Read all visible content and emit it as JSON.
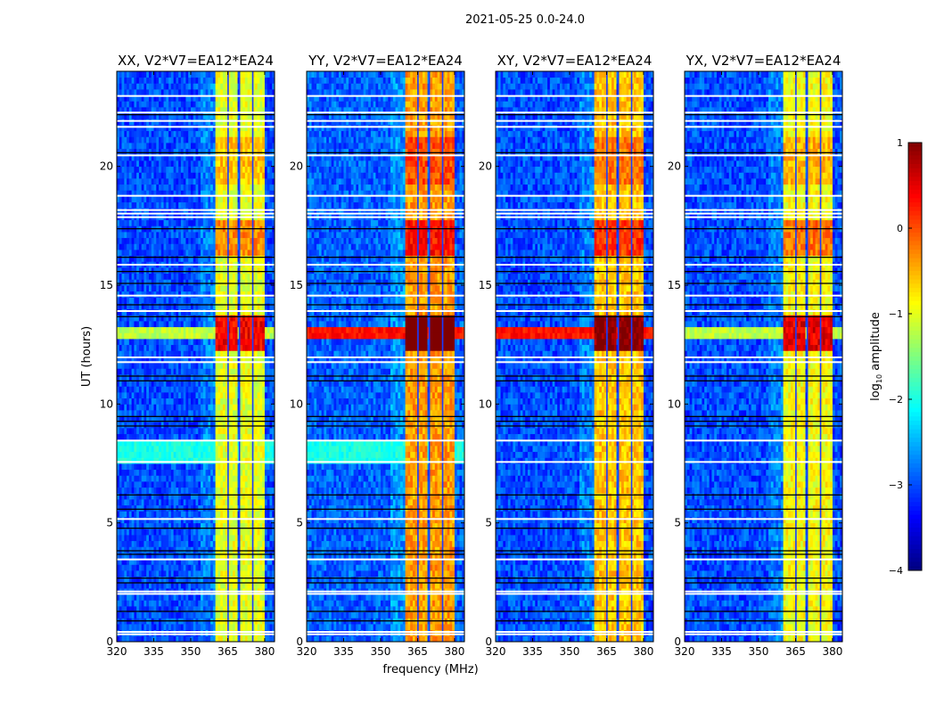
{
  "chart_data": {
    "type": "heatmap",
    "suptitle": "2021-05-25 0.0-24.0",
    "xlabel": "frequency (MHz)",
    "ylabel": "UT (hours)",
    "xlim": [
      320,
      384
    ],
    "ylim": [
      0,
      24
    ],
    "xticks": [
      320,
      335,
      350,
      365,
      380
    ],
    "yticks": [
      0,
      5,
      10,
      15,
      20
    ],
    "colorbar": {
      "label_main": "log",
      "label_sub": "10",
      "label_rest": " amplitude",
      "clim": [
        -4,
        1
      ],
      "ticks": [
        1,
        0,
        -1,
        -2,
        -3,
        -4
      ],
      "colormap": "jet"
    },
    "panels": [
      {
        "title": "XX, V2*V7=EA12*EA24",
        "background": -3.0,
        "band_level": -1.0,
        "hot_offset": 0.0
      },
      {
        "title": "YY, V2*V7=EA12*EA24",
        "background": -2.9,
        "band_level": -0.4,
        "hot_offset": 0.3
      },
      {
        "title": "XY, V2*V7=EA12*EA24",
        "background": -3.0,
        "band_level": -0.6,
        "hot_offset": 0.2
      },
      {
        "title": "YX, V2*V7=EA12*EA24",
        "background": -3.0,
        "band_level": -0.9,
        "hot_offset": 0.0
      }
    ],
    "rfi_columns_mhz": [
      [
        360.5,
        364.6
      ],
      [
        365.3,
        369.2
      ],
      [
        369.9,
        374.7
      ],
      [
        375.3,
        379.8
      ]
    ],
    "hot_time_ranges_hours": [
      {
        "range": [
          12.2,
          13.8
        ],
        "delta": 1.4
      },
      {
        "range": [
          16.3,
          17.8
        ],
        "delta": 0.7
      },
      {
        "range": [
          19.3,
          21.2
        ],
        "delta": 0.4
      }
    ],
    "broadband_time_ranges_hours": [
      {
        "range": [
          12.8,
          13.3
        ],
        "level": -1.2,
        "panels": [
          0,
          3
        ]
      },
      {
        "range": [
          12.8,
          13.3
        ],
        "level": 0.3,
        "panels": [
          1,
          2
        ]
      },
      {
        "range": [
          7.5,
          8.4
        ],
        "level": -2.0,
        "panels": [
          0,
          1
        ]
      }
    ],
    "flagged_times_hours": [
      0.35,
      0.45,
      2.05,
      2.15,
      3.5,
      5.2,
      7.6,
      8.5,
      11.8,
      12.0,
      13.95,
      14.6,
      15.9,
      17.9,
      18.05,
      18.2,
      18.8,
      20.5,
      21.7,
      21.95,
      22.3,
      23.0
    ],
    "dead_times_hours": [
      0.9,
      1.3,
      2.5,
      2.7,
      3.7,
      3.85,
      4.8,
      5.6,
      6.2,
      9.1,
      9.3,
      9.5,
      11.0,
      11.2,
      13.7,
      14.2,
      15.1,
      15.6,
      16.2,
      17.4,
      20.6,
      22.2
    ]
  }
}
